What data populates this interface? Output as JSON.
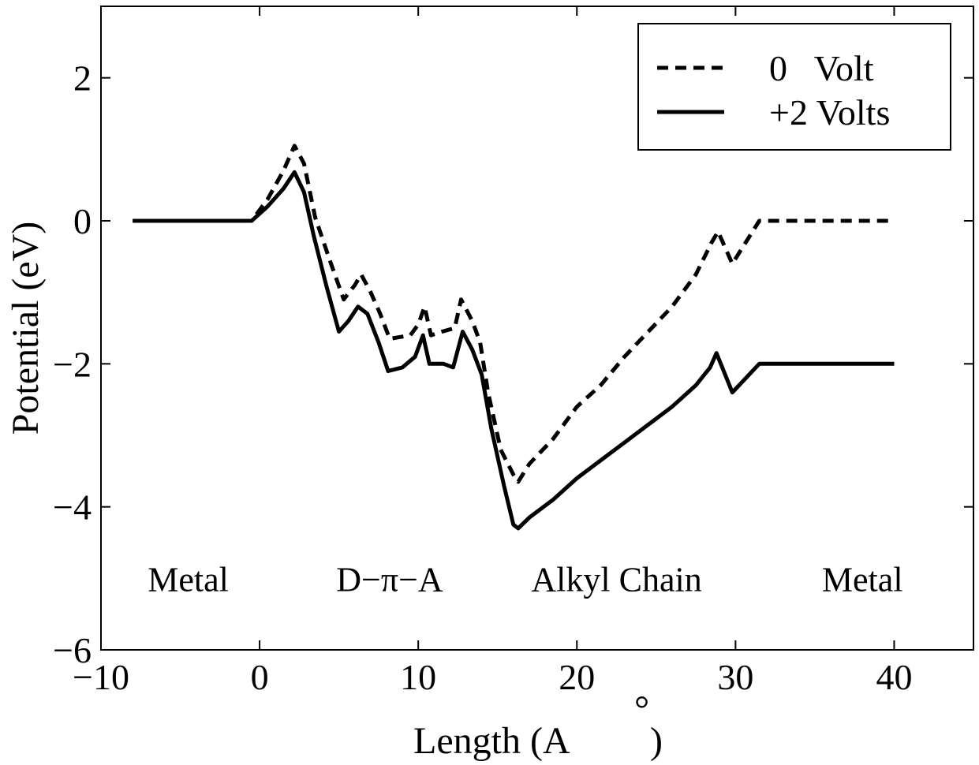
{
  "chart_data": {
    "type": "line",
    "xlabel": "Length (A",
    "xlabel_suffix": ")",
    "xlabel_ring": "°",
    "ylabel": "Potential (eV)",
    "xlim": [
      -10,
      45
    ],
    "ylim": [
      -6,
      3
    ],
    "xticks": [
      -10,
      0,
      10,
      20,
      30,
      40
    ],
    "xtick_labels": [
      "−10",
      "0",
      "10",
      "20",
      "30",
      "40"
    ],
    "yticks": [
      -6,
      -4,
      -2,
      0,
      2
    ],
    "ytick_labels": [
      "−6",
      "−4",
      "−2",
      "0",
      "2"
    ],
    "grid": false,
    "legend_position": "top-right",
    "annotations": [
      {
        "text": "Metal",
        "x": -4.5,
        "y": -5.0
      },
      {
        "text": "D−π−A",
        "x": 8.2,
        "y": -5.0
      },
      {
        "text": "Alkyl Chain",
        "x": 22.5,
        "y": -5.0
      },
      {
        "text": "Metal",
        "x": 38.0,
        "y": -5.0
      }
    ],
    "series": [
      {
        "name": "0   Volt",
        "style": "dashed",
        "points": [
          [
            -8.0,
            0.0
          ],
          [
            -0.5,
            0.0
          ],
          [
            0.5,
            0.3
          ],
          [
            1.5,
            0.7
          ],
          [
            2.2,
            1.05
          ],
          [
            2.8,
            0.8
          ],
          [
            3.5,
            0.05
          ],
          [
            4.5,
            -0.6
          ],
          [
            5.3,
            -1.1
          ],
          [
            6.0,
            -0.9
          ],
          [
            6.4,
            -0.75
          ],
          [
            7.0,
            -1.0
          ],
          [
            7.6,
            -1.3
          ],
          [
            8.2,
            -1.65
          ],
          [
            9.5,
            -1.6
          ],
          [
            10.0,
            -1.45
          ],
          [
            10.4,
            -1.2
          ],
          [
            10.8,
            -1.6
          ],
          [
            11.5,
            -1.55
          ],
          [
            12.3,
            -1.5
          ],
          [
            12.7,
            -1.1
          ],
          [
            13.4,
            -1.4
          ],
          [
            13.9,
            -1.7
          ],
          [
            14.4,
            -2.4
          ],
          [
            15.2,
            -3.2
          ],
          [
            16.0,
            -3.55
          ],
          [
            16.3,
            -3.65
          ],
          [
            17.0,
            -3.4
          ],
          [
            18.5,
            -3.05
          ],
          [
            20.0,
            -2.6
          ],
          [
            21.5,
            -2.3
          ],
          [
            23.0,
            -1.9
          ],
          [
            24.5,
            -1.55
          ],
          [
            26.0,
            -1.2
          ],
          [
            27.5,
            -0.75
          ],
          [
            28.5,
            -0.3
          ],
          [
            28.9,
            -0.15
          ],
          [
            29.8,
            -0.6
          ],
          [
            31.5,
            0.0
          ],
          [
            40.0,
            0.0
          ]
        ]
      },
      {
        "name": "+2 Volts",
        "style": "solid",
        "points": [
          [
            -8.0,
            0.0
          ],
          [
            -0.5,
            0.0
          ],
          [
            0.5,
            0.2
          ],
          [
            1.5,
            0.45
          ],
          [
            2.2,
            0.68
          ],
          [
            2.8,
            0.4
          ],
          [
            3.4,
            -0.2
          ],
          [
            4.2,
            -0.9
          ],
          [
            5.0,
            -1.55
          ],
          [
            5.6,
            -1.4
          ],
          [
            6.2,
            -1.2
          ],
          [
            6.8,
            -1.3
          ],
          [
            7.5,
            -1.7
          ],
          [
            8.1,
            -2.1
          ],
          [
            9.0,
            -2.05
          ],
          [
            9.8,
            -1.9
          ],
          [
            10.3,
            -1.6
          ],
          [
            10.7,
            -2.0
          ],
          [
            11.6,
            -2.0
          ],
          [
            12.2,
            -2.05
          ],
          [
            12.8,
            -1.55
          ],
          [
            13.4,
            -1.8
          ],
          [
            14.0,
            -2.15
          ],
          [
            14.6,
            -2.9
          ],
          [
            15.4,
            -3.7
          ],
          [
            16.0,
            -4.25
          ],
          [
            16.3,
            -4.3
          ],
          [
            17.0,
            -4.15
          ],
          [
            18.5,
            -3.9
          ],
          [
            20.0,
            -3.6
          ],
          [
            21.5,
            -3.35
          ],
          [
            23.0,
            -3.1
          ],
          [
            24.5,
            -2.85
          ],
          [
            26.0,
            -2.6
          ],
          [
            27.5,
            -2.3
          ],
          [
            28.4,
            -2.05
          ],
          [
            28.8,
            -1.85
          ],
          [
            29.8,
            -2.4
          ],
          [
            31.5,
            -2.0
          ],
          [
            40.0,
            -2.0
          ]
        ]
      }
    ]
  }
}
